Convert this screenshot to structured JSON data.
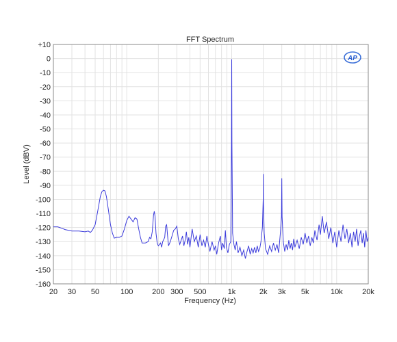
{
  "chart_data": {
    "type": "line",
    "title": "FFT Spectrum",
    "xlabel": "Frequency (Hz)",
    "ylabel": "Level (dBV)",
    "xscale": "log",
    "xlim": [
      20,
      20000
    ],
    "ylim": [
      -160,
      10
    ],
    "grid": true,
    "legend": "none",
    "logo": "AP",
    "line_color": "#3b3bdb",
    "x_ticks": [
      {
        "value": 20,
        "label": "20"
      },
      {
        "value": 30,
        "label": "30"
      },
      {
        "value": 50,
        "label": "50"
      },
      {
        "value": 100,
        "label": "100"
      },
      {
        "value": 200,
        "label": "200"
      },
      {
        "value": 300,
        "label": "300"
      },
      {
        "value": 500,
        "label": "500"
      },
      {
        "value": 1000,
        "label": "1k"
      },
      {
        "value": 2000,
        "label": "2k"
      },
      {
        "value": 3000,
        "label": "3k"
      },
      {
        "value": 5000,
        "label": "5k"
      },
      {
        "value": 10000,
        "label": "10k"
      },
      {
        "value": 20000,
        "label": "20k"
      }
    ],
    "y_ticks": [
      {
        "value": 10,
        "label": "+10"
      },
      {
        "value": 0,
        "label": "0"
      },
      {
        "value": -10,
        "label": "-10"
      },
      {
        "value": -20,
        "label": "-20"
      },
      {
        "value": -30,
        "label": "-30"
      },
      {
        "value": -40,
        "label": "-40"
      },
      {
        "value": -50,
        "label": "-50"
      },
      {
        "value": -60,
        "label": "-60"
      },
      {
        "value": -70,
        "label": "-70"
      },
      {
        "value": -80,
        "label": "-80"
      },
      {
        "value": -90,
        "label": "-90"
      },
      {
        "value": -100,
        "label": "-100"
      },
      {
        "value": -110,
        "label": "-110"
      },
      {
        "value": -120,
        "label": "-120"
      },
      {
        "value": -130,
        "label": "-130"
      },
      {
        "value": -140,
        "label": "-140"
      },
      {
        "value": -150,
        "label": "-150"
      },
      {
        "value": -160,
        "label": "-160"
      }
    ],
    "series": [
      {
        "points": [
          [
            20,
            -119.5
          ],
          [
            22,
            -119.5
          ],
          [
            24,
            -120.5
          ],
          [
            26,
            -121.5
          ],
          [
            28,
            -122
          ],
          [
            30,
            -122.5
          ],
          [
            35,
            -122.5
          ],
          [
            40,
            -123
          ],
          [
            43,
            -122.5
          ],
          [
            45,
            -123.5
          ],
          [
            47,
            -122
          ],
          [
            50,
            -118
          ],
          [
            53,
            -108
          ],
          [
            56,
            -98
          ],
          [
            58,
            -94.5
          ],
          [
            60,
            -93.5
          ],
          [
            62,
            -94
          ],
          [
            64,
            -98
          ],
          [
            67,
            -108
          ],
          [
            70,
            -118
          ],
          [
            73,
            -124
          ],
          [
            76,
            -127.5
          ],
          [
            80,
            -127
          ],
          [
            85,
            -127
          ],
          [
            90,
            -126
          ],
          [
            95,
            -121
          ],
          [
            100,
            -115
          ],
          [
            105,
            -112
          ],
          [
            110,
            -114
          ],
          [
            115,
            -116
          ],
          [
            120,
            -113
          ],
          [
            125,
            -114
          ],
          [
            130,
            -121
          ],
          [
            135,
            -127
          ],
          [
            140,
            -131
          ],
          [
            150,
            -131
          ],
          [
            160,
            -130
          ],
          [
            165,
            -127
          ],
          [
            170,
            -128
          ],
          [
            175,
            -123
          ],
          [
            180,
            -111
          ],
          [
            183,
            -108.5
          ],
          [
            186,
            -112
          ],
          [
            190,
            -124
          ],
          [
            195,
            -131
          ],
          [
            200,
            -133
          ],
          [
            210,
            -131
          ],
          [
            215,
            -134
          ],
          [
            220,
            -130
          ],
          [
            230,
            -127
          ],
          [
            235,
            -119
          ],
          [
            240,
            -118
          ],
          [
            245,
            -126
          ],
          [
            250,
            -133
          ],
          [
            260,
            -130
          ],
          [
            270,
            -126
          ],
          [
            280,
            -122
          ],
          [
            290,
            -121
          ],
          [
            300,
            -119
          ],
          [
            310,
            -128
          ],
          [
            320,
            -132
          ],
          [
            330,
            -129
          ],
          [
            340,
            -126
          ],
          [
            350,
            -133
          ],
          [
            360,
            -129
          ],
          [
            370,
            -123
          ],
          [
            380,
            -132
          ],
          [
            390,
            -127
          ],
          [
            400,
            -134
          ],
          [
            420,
            -121
          ],
          [
            440,
            -130
          ],
          [
            460,
            -126
          ],
          [
            480,
            -134
          ],
          [
            500,
            -125
          ],
          [
            520,
            -133
          ],
          [
            540,
            -129
          ],
          [
            560,
            -134
          ],
          [
            580,
            -126
          ],
          [
            600,
            -132
          ],
          [
            620,
            -137
          ],
          [
            650,
            -130
          ],
          [
            680,
            -136
          ],
          [
            700,
            -133
          ],
          [
            720,
            -139
          ],
          [
            750,
            -131
          ],
          [
            780,
            -126
          ],
          [
            800,
            -136
          ],
          [
            820,
            -131
          ],
          [
            850,
            -135
          ],
          [
            870,
            -122
          ],
          [
            890,
            -134
          ],
          [
            920,
            -138
          ],
          [
            950,
            -132
          ],
          [
            980,
            -130
          ],
          [
            995,
            -60
          ],
          [
            1000,
            -0.5
          ],
          [
            1005,
            -60
          ],
          [
            1020,
            -124
          ],
          [
            1050,
            -132
          ],
          [
            1080,
            -136
          ],
          [
            1110,
            -130
          ],
          [
            1150,
            -138
          ],
          [
            1200,
            -134
          ],
          [
            1250,
            -140
          ],
          [
            1300,
            -136
          ],
          [
            1350,
            -142
          ],
          [
            1400,
            -137
          ],
          [
            1450,
            -133
          ],
          [
            1500,
            -139
          ],
          [
            1550,
            -135
          ],
          [
            1600,
            -138
          ],
          [
            1650,
            -134
          ],
          [
            1700,
            -138
          ],
          [
            1750,
            -133
          ],
          [
            1800,
            -137
          ],
          [
            1850,
            -135
          ],
          [
            1900,
            -130
          ],
          [
            1960,
            -120
          ],
          [
            1995,
            -100
          ],
          [
            2000,
            -82
          ],
          [
            2005,
            -100
          ],
          [
            2040,
            -124
          ],
          [
            2100,
            -135
          ],
          [
            2200,
            -139
          ],
          [
            2300,
            -133
          ],
          [
            2400,
            -137
          ],
          [
            2500,
            -131
          ],
          [
            2600,
            -136
          ],
          [
            2700,
            -132
          ],
          [
            2800,
            -138
          ],
          [
            2900,
            -125
          ],
          [
            2980,
            -112
          ],
          [
            3000,
            -85
          ],
          [
            3020,
            -112
          ],
          [
            3100,
            -130
          ],
          [
            3200,
            -137
          ],
          [
            3300,
            -132
          ],
          [
            3400,
            -136
          ],
          [
            3500,
            -129
          ],
          [
            3600,
            -135
          ],
          [
            3700,
            -131
          ],
          [
            3800,
            -136
          ],
          [
            3900,
            -128
          ],
          [
            4000,
            -134
          ],
          [
            4200,
            -129
          ],
          [
            4400,
            -135
          ],
          [
            4600,
            -127
          ],
          [
            4800,
            -132
          ],
          [
            5000,
            -124
          ],
          [
            5200,
            -131
          ],
          [
            5400,
            -126
          ],
          [
            5600,
            -133
          ],
          [
            5800,
            -127
          ],
          [
            6000,
            -131
          ],
          [
            6200,
            -122
          ],
          [
            6500,
            -129
          ],
          [
            6800,
            -118
          ],
          [
            7000,
            -125
          ],
          [
            7300,
            -112
          ],
          [
            7600,
            -124
          ],
          [
            8000,
            -116
          ],
          [
            8400,
            -128
          ],
          [
            8800,
            -120
          ],
          [
            9200,
            -131
          ],
          [
            9600,
            -123
          ],
          [
            10000,
            -134
          ],
          [
            10500,
            -122
          ],
          [
            11000,
            -130
          ],
          [
            11500,
            -118
          ],
          [
            12000,
            -128
          ],
          [
            12500,
            -121
          ],
          [
            13000,
            -131
          ],
          [
            13500,
            -124
          ],
          [
            14000,
            -134
          ],
          [
            14500,
            -123
          ],
          [
            15000,
            -130
          ],
          [
            15500,
            -121
          ],
          [
            16000,
            -133
          ],
          [
            16500,
            -126
          ],
          [
            17000,
            -122
          ],
          [
            17500,
            -131
          ],
          [
            18000,
            -124
          ],
          [
            18500,
            -134
          ],
          [
            19000,
            -122
          ],
          [
            19500,
            -130
          ],
          [
            20000,
            -127
          ]
        ]
      }
    ]
  }
}
